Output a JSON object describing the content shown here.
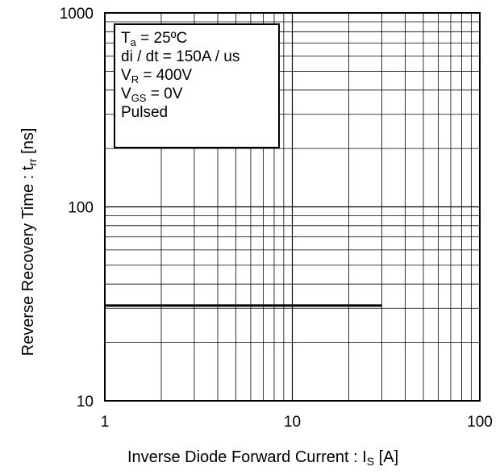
{
  "chart_data": {
    "type": "line",
    "x_scale": "log",
    "y_scale": "log",
    "xlim": [
      1,
      100
    ],
    "ylim": [
      10,
      1000
    ],
    "grid": true,
    "x_ticks": [
      "1",
      "10",
      "100"
    ],
    "y_ticks": [
      "10",
      "100",
      "1000"
    ],
    "xlabel": {
      "main": "Inverse Diode  Forward Current : I",
      "sub": "S",
      "tail": " [A]"
    },
    "ylabel": {
      "main": "Reverse Recovery Time : t",
      "sub": "rr",
      "tail": " [ns]"
    },
    "series": [
      {
        "x": [
          1,
          30
        ],
        "y": [
          31,
          31
        ],
        "color": "#000000"
      }
    ],
    "annotation": [
      {
        "main": "T",
        "sub": "a",
        "tail": " = 25ºC"
      },
      {
        "main": "di / dt = 150A / us",
        "sub": "",
        "tail": ""
      },
      {
        "main": "V",
        "sub": "R",
        "tail": " = 400V"
      },
      {
        "main": "V",
        "sub": "GS",
        "tail": " = 0V"
      },
      {
        "main": "Pulsed",
        "sub": "",
        "tail": ""
      }
    ]
  }
}
